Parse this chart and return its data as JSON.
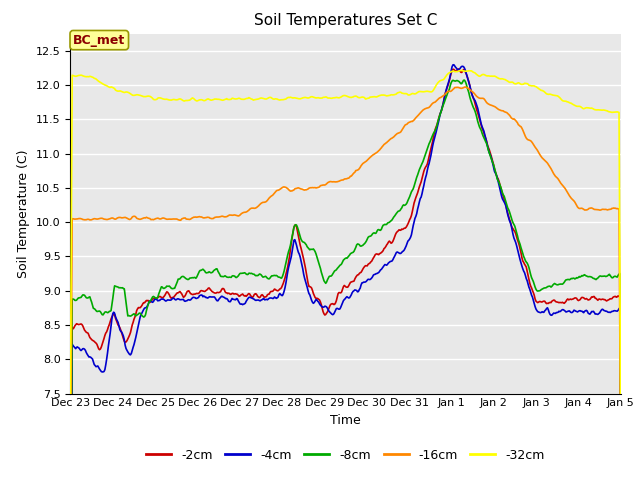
{
  "title": "Soil Temperatures Set C",
  "xlabel": "Time",
  "ylabel": "Soil Temperature (C)",
  "ylim": [
    7.5,
    12.75
  ],
  "n_days": 13,
  "colors": {
    "-2cm": "#cc0000",
    "-4cm": "#0000cc",
    "-8cm": "#00aa00",
    "-16cm": "#ff8800",
    "-32cm": "#ffff00"
  },
  "legend_entries": [
    "-2cm",
    "-4cm",
    "-8cm",
    "-16cm",
    "-32cm"
  ],
  "x_tick_labels": [
    "Dec 23",
    "Dec 24",
    "Dec 25",
    "Dec 26",
    "Dec 27",
    "Dec 28",
    "Dec 29",
    "Dec 30",
    "Dec 31",
    "Jan 1",
    "Jan 2",
    "Jan 3",
    "Jan 4",
    "Jan 5"
  ],
  "plot_bg_color": "#e8e8e8",
  "fig_bg_color": "#ffffff",
  "grid_color": "#ffffff",
  "bc_met_label": "BC_met",
  "bc_met_text_color": "#8b0000",
  "bc_met_bg": "#ffff99",
  "bc_met_border": "#999900",
  "title_fontsize": 11,
  "label_fontsize": 9,
  "tick_fontsize": 8,
  "legend_fontsize": 9,
  "linewidth": 1.2
}
